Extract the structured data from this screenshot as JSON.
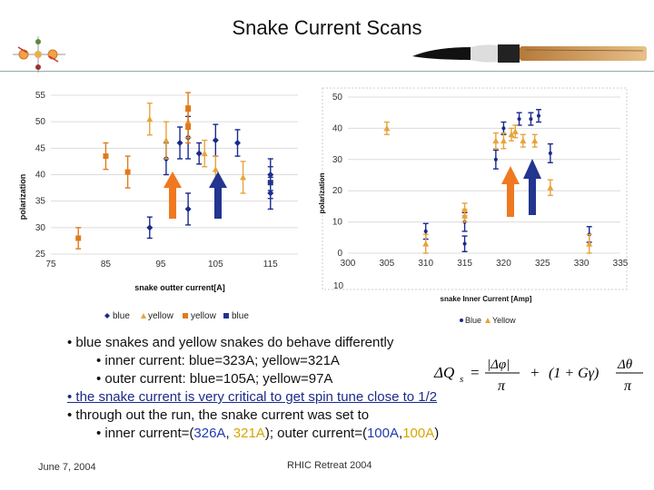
{
  "slide": {
    "title": "Snake Current Scans",
    "footer_date": "June 7, 2004",
    "footer_event": "RHIC Retreat 2004"
  },
  "colors": {
    "blue": "#1a2a8c",
    "yellow": "#e8a33a",
    "orange": "#e07a1c",
    "arrow_orange": "#f07820",
    "arrow_blue": "#22358f"
  },
  "bullets": {
    "b1": "• blue snakes and yellow snakes do behave differently",
    "b1a": "• inner current: blue=323A; yellow=321A",
    "b1b": "• outer current: blue=105A; yellow=97A",
    "b2": "• the snake current is very critical to get spin tune close to 1/2",
    "b3": "• through out the run, the snake current was set to",
    "b3a_pre": "• inner current=(",
    "b3a_v1": "326A",
    "b3a_sep": ", ",
    "b3a_v2": "321A",
    "b3a_mid": "); outer current=(",
    "b3a_v3": "100A",
    "b3a_sep2": ",",
    "b3a_v4": "100A",
    "b3a_end": ")"
  },
  "formula": {
    "lhs": "ΔQ",
    "lhs_sub": "s",
    "eq": "=",
    "num1": "|Δφ|",
    "den1": "π",
    "plus": "+",
    "mid": "(1 + Gγ)",
    "num2": "Δθ",
    "den2": "π"
  },
  "chart_data": [
    {
      "type": "scatter",
      "title": "",
      "xlabel": "snake outter current[A]",
      "ylabel": "polarization",
      "xlim": [
        75,
        120
      ],
      "ylim": [
        25,
        55
      ],
      "xticks": [
        "75",
        "85",
        "95",
        "105",
        "115"
      ],
      "yticks": [
        "25",
        "30",
        "35",
        "40",
        "45",
        "50",
        "55"
      ],
      "grid": "horizontal",
      "legend_placement": "bottom",
      "series": [
        {
          "name": "blue",
          "marker": "diamond",
          "color": "#1a2a8c",
          "points": [
            [
              93,
              30,
              2
            ],
            [
              96,
              43,
              3
            ],
            [
              98.5,
              46,
              3
            ],
            [
              100,
              47,
              4
            ],
            [
              100,
              33.5,
              3
            ],
            [
              102,
              44,
              2
            ],
            [
              105,
              46.5,
              3
            ],
            [
              109,
              46,
              2.5
            ],
            [
              115,
              40,
              3
            ],
            [
              115,
              36.5,
              3
            ]
          ]
        },
        {
          "name": "yellow",
          "marker": "triangle",
          "color": "#e8a33a",
          "points": [
            [
              93,
              50.5,
              3
            ],
            [
              96,
              46.5,
              3.5
            ],
            [
              100,
              50,
              3
            ],
            [
              103,
              44,
              2.5
            ],
            [
              105,
              41,
              2.5
            ],
            [
              110,
              39.5,
              3
            ]
          ]
        },
        {
          "name": "yellow",
          "marker": "square",
          "color": "#e07a1c",
          "points": [
            [
              80,
              28,
              2
            ],
            [
              85,
              43.5,
              2.5
            ],
            [
              89,
              40.5,
              3
            ],
            [
              100,
              52.5,
              3
            ],
            [
              100,
              49,
              3
            ]
          ]
        },
        {
          "name": "blue",
          "marker": "square",
          "color": "#22358f",
          "points": [
            [
              115,
              38.5,
              3
            ]
          ]
        }
      ]
    },
    {
      "type": "scatter",
      "title": "",
      "xlabel": "snake Inner Current [Amp]",
      "ylabel": "polarization",
      "xlim": [
        300,
        335
      ],
      "ylim": [
        0,
        50
      ],
      "xticks": [
        "300",
        "305",
        "310",
        "315",
        "320",
        "325",
        "330",
        "335"
      ],
      "yticks": [
        "0",
        "10",
        "20",
        "30",
        "40",
        "50"
      ],
      "extra_ytick": "10",
      "grid": "horizontal",
      "legend_placement": "bottom",
      "series": [
        {
          "name": "Blue",
          "marker": "dot",
          "color": "#1a2a8c",
          "points": [
            [
              310,
              7,
              2.5
            ],
            [
              315,
              10,
              3
            ],
            [
              315,
              3,
              2.5
            ],
            [
              319,
              30,
              3
            ],
            [
              320,
              40,
              2
            ],
            [
              322,
              43,
              2
            ],
            [
              323.5,
              43,
              2
            ],
            [
              324.5,
              44,
              2
            ],
            [
              326,
              32,
              3
            ],
            [
              331,
              6,
              2.5
            ]
          ]
        },
        {
          "name": "Yellow",
          "marker": "triangle",
          "color": "#e8a33a",
          "points": [
            [
              305,
              40,
              2
            ],
            [
              310,
              3,
              3
            ],
            [
              315,
              14,
              2
            ],
            [
              315,
              12,
              2
            ],
            [
              319,
              36,
              2.5
            ],
            [
              320,
              36,
              2.5
            ],
            [
              321,
              38,
              2
            ],
            [
              321.5,
              39,
              2
            ],
            [
              322.5,
              36,
              2
            ],
            [
              324,
              36,
              2
            ],
            [
              326,
              21,
              2.5
            ],
            [
              331,
              3,
              3
            ]
          ]
        }
      ]
    }
  ]
}
